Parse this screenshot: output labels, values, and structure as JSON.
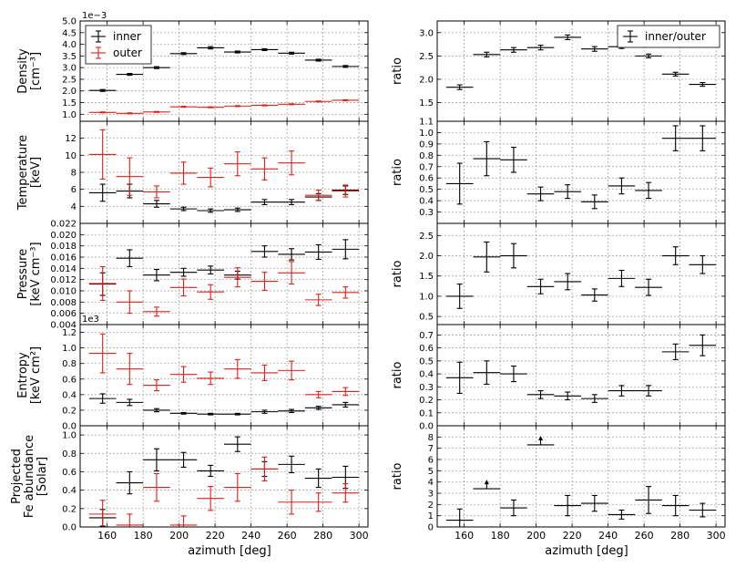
{
  "figure": {
    "left_xlabel": "azimuth [deg]",
    "right_xlabel": "azimuth [deg]",
    "legend_left": [
      "inner",
      "outer"
    ],
    "legend_right": [
      "inner/outer"
    ],
    "colors": {
      "inner": "#000000",
      "outer": "#e0201b",
      "grid": "#9a9a9a"
    }
  },
  "chart_data": [
    {
      "type": "scatter",
      "panel": "density",
      "ylabel_lines": [
        "Density",
        "[cm⁻³]"
      ],
      "offset_text": "1e−3",
      "xlim": [
        145,
        305
      ],
      "ylim": [
        0.7,
        5.0
      ],
      "xticks": [
        160,
        180,
        200,
        220,
        240,
        260,
        280,
        300
      ],
      "yticks": [
        1.0,
        1.5,
        2.0,
        2.5,
        3.0,
        3.5,
        4.0,
        4.5,
        5.0
      ],
      "yticklabels": [
        "1.0",
        "1.5",
        "2.0",
        "2.5",
        "3.0",
        "3.5",
        "4.0",
        "4.5",
        "5.0"
      ],
      "legend": [
        "inner",
        "outer"
      ],
      "series": [
        {
          "name": "inner",
          "color": "#000000",
          "x": [
            157.5,
            172.5,
            187.5,
            202.5,
            217.5,
            232.5,
            247.5,
            262.5,
            277.5,
            292.5
          ],
          "xerr": 7.5,
          "y": [
            2.02,
            2.71,
            3.0,
            3.6,
            3.85,
            3.67,
            3.77,
            3.62,
            3.32,
            3.05
          ],
          "yerr": [
            0.04,
            0.04,
            0.04,
            0.04,
            0.05,
            0.04,
            0.04,
            0.04,
            0.04,
            0.04
          ]
        },
        {
          "name": "outer",
          "color": "#e0201b",
          "x": [
            157.5,
            172.5,
            187.5,
            202.5,
            217.5,
            232.5,
            247.5,
            262.5,
            277.5,
            292.5
          ],
          "xerr": 7.5,
          "y": [
            1.08,
            1.04,
            1.1,
            1.32,
            1.3,
            1.35,
            1.38,
            1.43,
            1.55,
            1.6
          ],
          "yerr": [
            0.02,
            0.02,
            0.02,
            0.02,
            0.02,
            0.02,
            0.02,
            0.02,
            0.02,
            0.02
          ]
        }
      ]
    },
    {
      "type": "scatter",
      "panel": "density_ratio",
      "ylabel_lines": [
        "ratio"
      ],
      "xlim": [
        145,
        305
      ],
      "ylim": [
        1.1,
        3.25
      ],
      "xticks": [
        160,
        180,
        200,
        220,
        240,
        260,
        280,
        300
      ],
      "yticks": [
        1.1,
        1.5,
        2.0,
        2.5,
        3.0
      ],
      "yticklabels": [
        "1.1",
        "1.5",
        "2.0",
        "2.5",
        "3.0"
      ],
      "legend": [
        "inner/outer"
      ],
      "series": [
        {
          "name": "inner/outer",
          "color": "#000000",
          "x": [
            157.5,
            172.5,
            187.5,
            202.5,
            217.5,
            232.5,
            247.5,
            262.5,
            277.5,
            292.5
          ],
          "xerr": 7.5,
          "y": [
            1.83,
            2.53,
            2.63,
            2.68,
            2.9,
            2.65,
            2.7,
            2.5,
            2.11,
            1.89
          ],
          "yerr": [
            0.05,
            0.05,
            0.05,
            0.05,
            0.05,
            0.05,
            0.04,
            0.04,
            0.04,
            0.04
          ]
        }
      ]
    },
    {
      "type": "scatter",
      "panel": "temperature",
      "ylabel_lines": [
        "Temperature",
        "[keV]"
      ],
      "xlim": [
        145,
        305
      ],
      "ylim": [
        2.0,
        14.0
      ],
      "xticks": [
        160,
        180,
        200,
        220,
        240,
        260,
        280,
        300
      ],
      "yticks": [
        4,
        6,
        8,
        10,
        12
      ],
      "yticklabels": [
        "4",
        "6",
        "8",
        "10",
        "12"
      ],
      "series": [
        {
          "name": "inner",
          "color": "#000000",
          "x": [
            157.5,
            172.5,
            187.5,
            202.5,
            217.5,
            232.5,
            247.5,
            262.5,
            277.5,
            292.5
          ],
          "xerr": 7.5,
          "y": [
            5.6,
            5.8,
            4.3,
            3.7,
            3.5,
            3.6,
            4.5,
            4.5,
            5.1,
            5.9
          ],
          "yerr": [
            1.0,
            0.8,
            0.4,
            0.2,
            0.2,
            0.2,
            0.3,
            0.3,
            0.4,
            0.5
          ]
        },
        {
          "name": "outer",
          "color": "#e0201b",
          "x": [
            157.5,
            172.5,
            187.5,
            202.5,
            217.5,
            232.5,
            247.5,
            262.5,
            277.5,
            292.5
          ],
          "xerr": 7.5,
          "y": [
            10.1,
            7.5,
            5.7,
            7.9,
            7.4,
            9.0,
            8.4,
            9.1,
            5.3,
            5.8
          ],
          "yerr": [
            2.9,
            2.2,
            0.7,
            1.3,
            1.1,
            1.4,
            1.3,
            1.4,
            0.6,
            0.7
          ]
        }
      ]
    },
    {
      "type": "scatter",
      "panel": "temperature_ratio",
      "ylabel_lines": [
        "ratio"
      ],
      "xlim": [
        145,
        305
      ],
      "ylim": [
        0.2,
        1.1
      ],
      "xticks": [
        160,
        180,
        200,
        220,
        240,
        260,
        280,
        300
      ],
      "yticks": [
        0.3,
        0.4,
        0.5,
        0.6,
        0.7,
        0.8,
        0.9,
        1.0
      ],
      "yticklabels": [
        "0.3",
        "0.4",
        "0.5",
        "0.6",
        "0.7",
        "0.8",
        "0.9",
        "1.0"
      ],
      "series": [
        {
          "name": "inner/outer",
          "color": "#000000",
          "x": [
            157.5,
            172.5,
            187.5,
            202.5,
            217.5,
            232.5,
            247.5,
            262.5,
            277.5,
            292.5
          ],
          "xerr": 7.5,
          "y": [
            0.55,
            0.77,
            0.76,
            0.46,
            0.48,
            0.39,
            0.53,
            0.49,
            0.95,
            0.95
          ],
          "yerr": [
            0.18,
            0.15,
            0.11,
            0.06,
            0.06,
            0.06,
            0.07,
            0.07,
            0.11,
            0.11
          ]
        }
      ]
    },
    {
      "type": "scatter",
      "panel": "pressure",
      "ylabel_lines": [
        "Pressure",
        "[keV cm⁻³]"
      ],
      "xlim": [
        145,
        305
      ],
      "ylim": [
        0.004,
        0.022
      ],
      "xticks": [
        160,
        180,
        200,
        220,
        240,
        260,
        280,
        300
      ],
      "yticks": [
        0.004,
        0.006,
        0.008,
        0.01,
        0.012,
        0.014,
        0.016,
        0.018,
        0.02,
        0.022
      ],
      "yticklabels": [
        "0.004",
        "0.006",
        "0.008",
        "0.010",
        "0.012",
        "0.014",
        "0.016",
        "0.018",
        "0.020",
        "0.022"
      ],
      "series": [
        {
          "name": "inner",
          "color": "#000000",
          "x": [
            157.5,
            172.5,
            187.5,
            202.5,
            217.5,
            232.5,
            247.5,
            262.5,
            277.5,
            292.5
          ],
          "xerr": 7.5,
          "y": [
            0.0112,
            0.0158,
            0.0128,
            0.0133,
            0.0137,
            0.0128,
            0.017,
            0.0165,
            0.0169,
            0.0174
          ],
          "yerr": [
            0.002,
            0.0015,
            0.001,
            0.0007,
            0.0007,
            0.0007,
            0.001,
            0.001,
            0.0013,
            0.0017
          ]
        },
        {
          "name": "outer",
          "color": "#e0201b",
          "x": [
            157.5,
            172.5,
            187.5,
            202.5,
            217.5,
            232.5,
            247.5,
            262.5,
            277.5,
            292.5
          ],
          "xerr": 7.5,
          "y": [
            0.0113,
            0.008,
            0.0063,
            0.0106,
            0.0098,
            0.0124,
            0.0117,
            0.0132,
            0.0084,
            0.0097
          ],
          "yerr": [
            0.003,
            0.002,
            0.0008,
            0.0015,
            0.0013,
            0.0017,
            0.0016,
            0.002,
            0.001,
            0.001
          ]
        }
      ]
    },
    {
      "type": "scatter",
      "panel": "pressure_ratio",
      "ylabel_lines": [
        "ratio"
      ],
      "xlim": [
        145,
        305
      ],
      "ylim": [
        0.3,
        2.8
      ],
      "xticks": [
        160,
        180,
        200,
        220,
        240,
        260,
        280,
        300
      ],
      "yticks": [
        0.5,
        1.0,
        1.5,
        2.0,
        2.5
      ],
      "yticklabels": [
        "0.5",
        "1.0",
        "1.5",
        "2.0",
        "2.5"
      ],
      "series": [
        {
          "name": "inner/outer",
          "color": "#000000",
          "x": [
            157.5,
            172.5,
            187.5,
            202.5,
            217.5,
            232.5,
            247.5,
            262.5,
            277.5,
            292.5
          ],
          "xerr": 7.5,
          "y": [
            1.0,
            1.97,
            2.0,
            1.24,
            1.36,
            1.03,
            1.44,
            1.22,
            2.0,
            1.78
          ],
          "yerr": [
            0.3,
            0.37,
            0.3,
            0.18,
            0.2,
            0.15,
            0.2,
            0.2,
            0.22,
            0.22
          ]
        }
      ]
    },
    {
      "type": "scatter",
      "panel": "entropy",
      "ylabel_lines": [
        "Entropy",
        "[keV cm²]"
      ],
      "offset_text": "1e3",
      "xlim": [
        145,
        305
      ],
      "ylim": [
        0.0,
        1.3
      ],
      "xticks": [
        160,
        180,
        200,
        220,
        240,
        260,
        280,
        300
      ],
      "yticks": [
        0.0,
        0.2,
        0.4,
        0.6,
        0.8,
        1.0,
        1.2
      ],
      "yticklabels": [
        "0.0",
        "0.2",
        "0.4",
        "0.6",
        "0.8",
        "1.0",
        "1.2"
      ],
      "series": [
        {
          "name": "inner",
          "color": "#000000",
          "x": [
            157.5,
            172.5,
            187.5,
            202.5,
            217.5,
            232.5,
            247.5,
            262.5,
            277.5,
            292.5
          ],
          "xerr": 7.5,
          "y": [
            0.35,
            0.3,
            0.2,
            0.16,
            0.15,
            0.15,
            0.18,
            0.19,
            0.23,
            0.27
          ],
          "yerr": [
            0.06,
            0.04,
            0.02,
            0.01,
            0.01,
            0.01,
            0.02,
            0.02,
            0.02,
            0.03
          ]
        },
        {
          "name": "outer",
          "color": "#e0201b",
          "x": [
            157.5,
            172.5,
            187.5,
            202.5,
            217.5,
            232.5,
            247.5,
            262.5,
            277.5,
            292.5
          ],
          "xerr": 7.5,
          "y": [
            0.93,
            0.73,
            0.52,
            0.66,
            0.61,
            0.73,
            0.68,
            0.71,
            0.4,
            0.44
          ],
          "yerr": [
            0.25,
            0.2,
            0.07,
            0.1,
            0.08,
            0.12,
            0.1,
            0.12,
            0.04,
            0.05
          ]
        }
      ]
    },
    {
      "type": "scatter",
      "panel": "entropy_ratio",
      "ylabel_lines": [
        "ratio"
      ],
      "xlim": [
        145,
        305
      ],
      "ylim": [
        0.0,
        0.78
      ],
      "xticks": [
        160,
        180,
        200,
        220,
        240,
        260,
        280,
        300
      ],
      "yticks": [
        0.0,
        0.1,
        0.2,
        0.3,
        0.4,
        0.5,
        0.6,
        0.7
      ],
      "yticklabels": [
        "0.0",
        "0.1",
        "0.2",
        "0.3",
        "0.4",
        "0.5",
        "0.6",
        "0.7"
      ],
      "series": [
        {
          "name": "inner/outer",
          "color": "#000000",
          "x": [
            157.5,
            172.5,
            187.5,
            202.5,
            217.5,
            232.5,
            247.5,
            262.5,
            277.5,
            292.5
          ],
          "xerr": 7.5,
          "y": [
            0.37,
            0.41,
            0.4,
            0.24,
            0.23,
            0.21,
            0.27,
            0.27,
            0.57,
            0.62
          ],
          "yerr": [
            0.12,
            0.09,
            0.06,
            0.03,
            0.03,
            0.03,
            0.04,
            0.04,
            0.06,
            0.08
          ]
        }
      ]
    },
    {
      "type": "scatter",
      "panel": "fe_abundance",
      "ylabel_lines": [
        "Projected",
        "Fe abundance",
        "[Solar]"
      ],
      "xlim": [
        145,
        305
      ],
      "ylim": [
        0.0,
        1.1
      ],
      "xticks": [
        160,
        180,
        200,
        220,
        240,
        260,
        280,
        300
      ],
      "xticklabels": [
        "160",
        "180",
        "200",
        "220",
        "240",
        "260",
        "280",
        "300"
      ],
      "yticks": [
        0.0,
        0.2,
        0.4,
        0.6,
        0.8,
        1.0
      ],
      "yticklabels": [
        "0.0",
        "0.2",
        "0.4",
        "0.6",
        "0.8",
        "1.0"
      ],
      "series": [
        {
          "name": "inner",
          "color": "#000000",
          "x": [
            157.5,
            172.5,
            187.5,
            202.5,
            217.5,
            232.5,
            247.5,
            262.5,
            277.5,
            292.5
          ],
          "xerr": 7.5,
          "y": [
            0.1,
            0.48,
            0.73,
            0.73,
            0.61,
            0.9,
            0.63,
            0.68,
            0.53,
            0.54
          ],
          "yerr": [
            0.09,
            0.12,
            0.12,
            0.08,
            0.06,
            0.08,
            0.08,
            0.09,
            0.1,
            0.12
          ]
        },
        {
          "name": "outer",
          "color": "#e0201b",
          "x": [
            157.5,
            172.5,
            187.5,
            202.5,
            217.5,
            232.5,
            247.5,
            262.5,
            277.5,
            292.5
          ],
          "xerr": 7.5,
          "y": [
            0.14,
            0.02,
            0.43,
            0.02,
            0.31,
            0.43,
            0.63,
            0.27,
            0.27,
            0.37
          ],
          "yerr": [
            0.15,
            0.12,
            0.15,
            0.1,
            0.13,
            0.15,
            0.13,
            0.13,
            0.1,
            0.1
          ]
        }
      ]
    },
    {
      "type": "scatter",
      "panel": "fe_ratio",
      "ylabel_lines": [
        "ratio"
      ],
      "xlim": [
        145,
        305
      ],
      "ylim": [
        0,
        9
      ],
      "xticks": [
        160,
        180,
        200,
        220,
        240,
        260,
        280,
        300
      ],
      "xticklabels": [
        "160",
        "180",
        "200",
        "220",
        "240",
        "260",
        "280",
        "300"
      ],
      "yticks": [
        0,
        1,
        2,
        3,
        4,
        5,
        6,
        7,
        8
      ],
      "yticklabels": [
        "0",
        "1",
        "2",
        "3",
        "4",
        "5",
        "6",
        "7",
        "8"
      ],
      "series": [
        {
          "name": "inner/outer",
          "color": "#000000",
          "x": [
            157.5,
            172.5,
            187.5,
            202.5,
            217.5,
            232.5,
            247.5,
            262.5,
            277.5,
            292.5
          ],
          "xerr": 7.5,
          "y": [
            0.6,
            3.4,
            1.7,
            7.3,
            1.9,
            2.1,
            1.1,
            2.4,
            1.9,
            1.5
          ],
          "yerr": [
            1.0,
            0.0,
            0.7,
            0.0,
            0.9,
            0.7,
            0.4,
            1.2,
            0.9,
            0.6
          ],
          "lower_limit": [
            false,
            true,
            false,
            true,
            false,
            false,
            false,
            false,
            false,
            false
          ]
        }
      ]
    }
  ]
}
